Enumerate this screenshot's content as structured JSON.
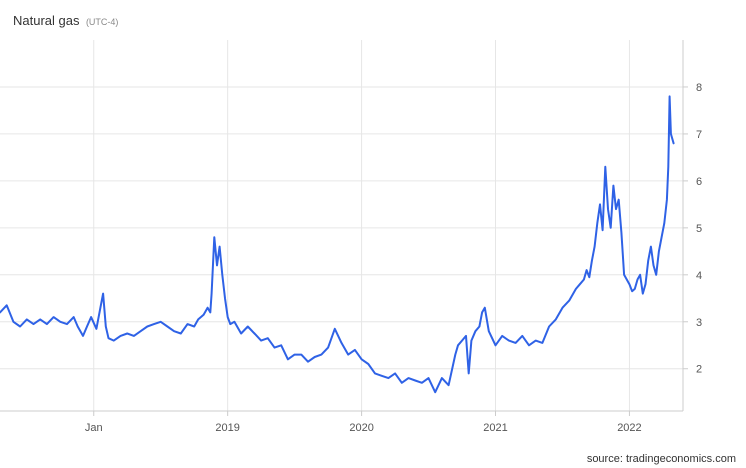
{
  "chart_data": {
    "type": "line",
    "title": "Natural gas",
    "subtitle": "(UTC-4)",
    "source": "source: tradingeconomics.com",
    "x_axis": {
      "unit": "year",
      "range": [
        2017.3,
        2022.4
      ],
      "tick_values": [
        2018.0,
        2019.0,
        2020.0,
        2021.0,
        2022.0
      ],
      "tick_labels": [
        "Jan",
        "2019",
        "2020",
        "2021",
        "2022"
      ]
    },
    "y_axis": {
      "range": [
        1.1,
        9.0
      ],
      "tick_values": [
        2,
        3,
        4,
        5,
        6,
        7,
        8
      ],
      "tick_labels": [
        "2",
        "3",
        "4",
        "5",
        "6",
        "7",
        "8"
      ],
      "position": "right"
    },
    "grid": true,
    "line_color": "#2f62e6",
    "series": [
      {
        "x": [
          2017.3,
          2017.35,
          2017.4,
          2017.45,
          2017.5,
          2017.55,
          2017.6,
          2017.65,
          2017.7,
          2017.75,
          2017.8,
          2017.85,
          2017.88,
          2017.92,
          2017.95,
          2017.98,
          2018.02,
          2018.05,
          2018.07,
          2018.09,
          2018.11,
          2018.15,
          2018.2,
          2018.25,
          2018.3,
          2018.35,
          2018.4,
          2018.45,
          2018.5,
          2018.55,
          2018.6,
          2018.65,
          2018.7,
          2018.75,
          2018.78,
          2018.82,
          2018.85,
          2018.87,
          2018.88,
          2018.9,
          2018.92,
          2018.94,
          2018.96,
          2018.98,
          2019.0,
          2019.02,
          2019.05,
          2019.1,
          2019.15,
          2019.2,
          2019.25,
          2019.3,
          2019.35,
          2019.4,
          2019.45,
          2019.5,
          2019.55,
          2019.6,
          2019.65,
          2019.7,
          2019.75,
          2019.8,
          2019.85,
          2019.9,
          2019.95,
          2020.0,
          2020.05,
          2020.1,
          2020.15,
          2020.2,
          2020.25,
          2020.3,
          2020.35,
          2020.4,
          2020.45,
          2020.5,
          2020.55,
          2020.6,
          2020.65,
          2020.7,
          2020.72,
          2020.75,
          2020.78,
          2020.8,
          2020.82,
          2020.85,
          2020.88,
          2020.9,
          2020.92,
          2020.95,
          2021.0,
          2021.05,
          2021.1,
          2021.15,
          2021.2,
          2021.25,
          2021.3,
          2021.35,
          2021.4,
          2021.45,
          2021.5,
          2021.55,
          2021.6,
          2021.63,
          2021.66,
          2021.68,
          2021.7,
          2021.72,
          2021.74,
          2021.76,
          2021.78,
          2021.8,
          2021.82,
          2021.84,
          2021.86,
          2021.88,
          2021.9,
          2021.92,
          2021.94,
          2021.96,
          2022.0,
          2022.02,
          2022.04,
          2022.06,
          2022.08,
          2022.1,
          2022.12,
          2022.14,
          2022.16,
          2022.18,
          2022.2,
          2022.22,
          2022.24,
          2022.26,
          2022.28,
          2022.29,
          2022.3,
          2022.31,
          2022.33
        ],
        "y": [
          3.2,
          3.35,
          3.0,
          2.9,
          3.05,
          2.95,
          3.05,
          2.95,
          3.1,
          3.0,
          2.95,
          3.1,
          2.9,
          2.7,
          2.9,
          3.1,
          2.85,
          3.3,
          3.6,
          2.9,
          2.65,
          2.6,
          2.7,
          2.75,
          2.7,
          2.8,
          2.9,
          2.95,
          3.0,
          2.9,
          2.8,
          2.75,
          2.95,
          2.9,
          3.05,
          3.15,
          3.3,
          3.2,
          3.6,
          4.8,
          4.2,
          4.6,
          4.0,
          3.5,
          3.1,
          2.95,
          3.0,
          2.75,
          2.9,
          2.75,
          2.6,
          2.65,
          2.45,
          2.5,
          2.2,
          2.3,
          2.3,
          2.15,
          2.25,
          2.3,
          2.45,
          2.85,
          2.55,
          2.3,
          2.4,
          2.2,
          2.1,
          1.9,
          1.85,
          1.8,
          1.9,
          1.7,
          1.8,
          1.75,
          1.7,
          1.8,
          1.5,
          1.8,
          1.65,
          2.3,
          2.5,
          2.6,
          2.7,
          1.9,
          2.6,
          2.8,
          2.9,
          3.2,
          3.3,
          2.8,
          2.5,
          2.7,
          2.6,
          2.55,
          2.7,
          2.5,
          2.6,
          2.55,
          2.9,
          3.05,
          3.3,
          3.45,
          3.7,
          3.8,
          3.9,
          4.1,
          3.95,
          4.3,
          4.6,
          5.1,
          5.5,
          4.95,
          6.3,
          5.4,
          5.0,
          5.9,
          5.4,
          5.6,
          4.9,
          4.0,
          3.8,
          3.65,
          3.7,
          3.9,
          4.0,
          3.6,
          3.8,
          4.3,
          4.6,
          4.2,
          4.0,
          4.5,
          4.8,
          5.1,
          5.6,
          6.3,
          7.8,
          7.0,
          6.8
        ]
      }
    ]
  }
}
